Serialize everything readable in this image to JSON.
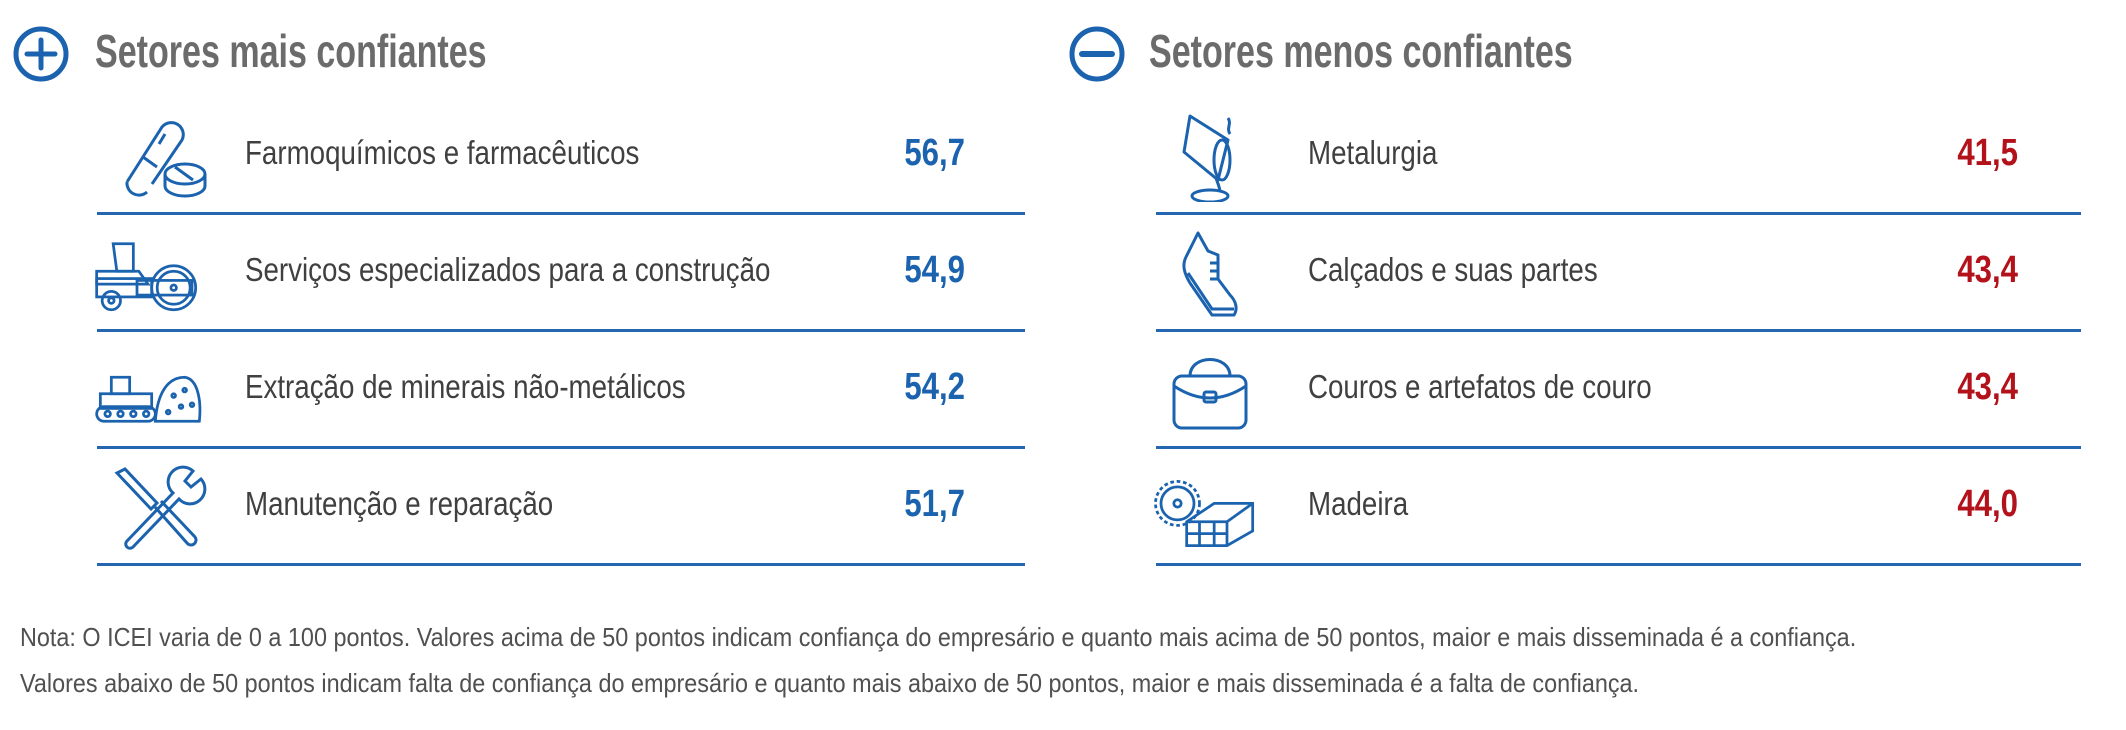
{
  "colors": {
    "accent_blue": "#1b63ae",
    "positive_value": "#1b63ae",
    "negative_value": "#b3121a",
    "title_grey": "#6b6b6b"
  },
  "left": {
    "icon": "plus-circle-icon",
    "title": "Setores mais confiantes",
    "items": [
      {
        "icon": "pills-icon",
        "label": "Farmoquímicos e farmacêuticos",
        "value": "56,7"
      },
      {
        "icon": "road-roller-icon",
        "label": "Serviços especializados para a construção",
        "value": "54,9"
      },
      {
        "icon": "bulldozer-minerals-icon",
        "label": "Extração de minerais não-metálicos",
        "value": "54,2"
      },
      {
        "icon": "wrench-screwdriver-icon",
        "label": "Manutenção e reparação",
        "value": "51,7"
      }
    ]
  },
  "right": {
    "icon": "minus-circle-icon",
    "title": "Setores menos confiantes",
    "items": [
      {
        "icon": "pouring-bucket-icon",
        "label": "Metalurgia",
        "value": "41,5"
      },
      {
        "icon": "sneaker-icon",
        "label": "Calçados e suas partes",
        "value": "43,4"
      },
      {
        "icon": "handbag-icon",
        "label": "Couros e artefatos de couro",
        "value": "43,4"
      },
      {
        "icon": "saw-wood-icon",
        "label": "Madeira",
        "value": "44,0"
      }
    ]
  },
  "note": {
    "line1": "Nota: O ICEI varia de 0 a 100 pontos. Valores acima de 50 pontos indicam confiança do empresário e quanto mais acima de 50 pontos, maior e mais disseminada é a confiança.",
    "line2": "Valores abaixo de 50 pontos indicam falta de confiança do empresário e quanto mais abaixo de 50 pontos, maior e mais disseminada é a falta de confiança."
  }
}
